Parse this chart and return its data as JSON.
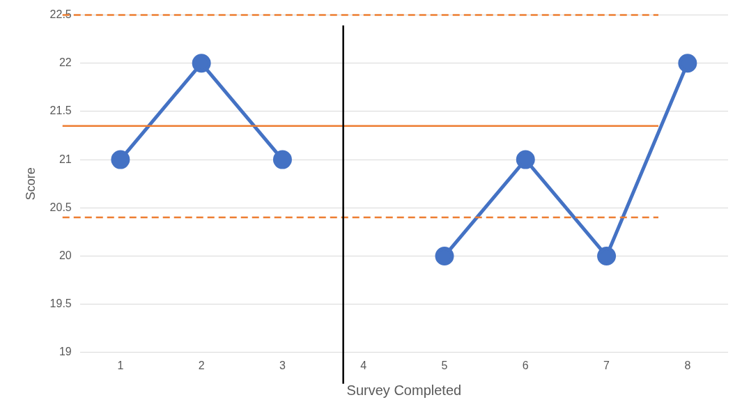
{
  "chart_data": {
    "type": "line",
    "xlabel": "Survey Completed",
    "ylabel": "Score",
    "x": [
      1,
      2,
      3,
      4,
      5,
      6,
      7,
      8
    ],
    "values": [
      21,
      22,
      21,
      null,
      20,
      21,
      20,
      22
    ],
    "color": "#4472c4",
    "xlim": [
      0.5,
      8.5
    ],
    "xticks": [
      1,
      2,
      3,
      4,
      5,
      6,
      7,
      8
    ],
    "ylim": [
      19,
      22.5
    ],
    "yticks": [
      19,
      19.5,
      20,
      20.5,
      21,
      21.5,
      22,
      22.5
    ],
    "grid": "y",
    "legend": false,
    "marker": "circle",
    "line_style": "solid",
    "ref_lines": [
      {
        "axis": "y",
        "value": 22.5,
        "color": "#ed7d31",
        "line_style": "dashed"
      },
      {
        "axis": "y",
        "value": 21.35,
        "color": "#ed7d31",
        "line_style": "solid"
      },
      {
        "axis": "y",
        "value": 20.4,
        "color": "#ed7d31",
        "line_style": "dashed"
      },
      {
        "axis": "x",
        "value": 3.75,
        "color": "#000000",
        "line_style": "solid"
      }
    ]
  }
}
